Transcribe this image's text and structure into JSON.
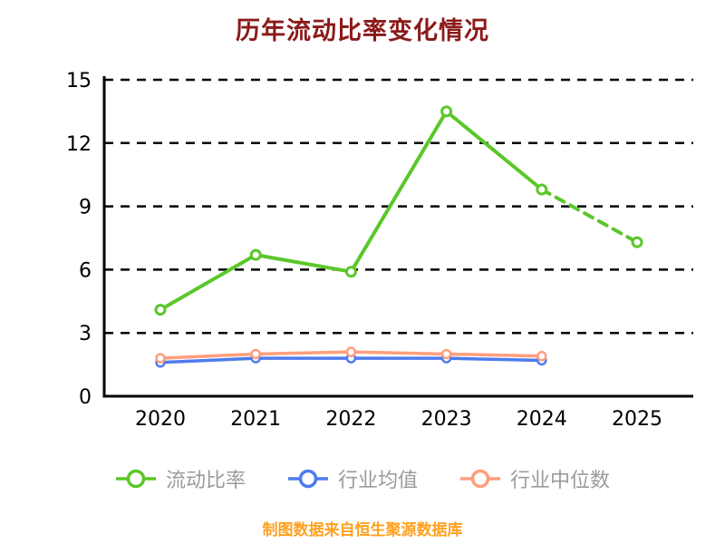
{
  "chart_data": {
    "type": "line",
    "title": "历年流动比率变化情况",
    "x": [
      "2020",
      "2021",
      "2022",
      "2023",
      "2024",
      "2025"
    ],
    "xlabel": "",
    "ylabel": "",
    "ylim": [
      0,
      15
    ],
    "yticks": [
      0,
      3,
      6,
      9,
      12,
      15
    ],
    "grid": "horizontal-dashed",
    "legend_position": "bottom",
    "series": [
      {
        "key": "current-ratio",
        "name": "流动比率",
        "color": "#5BC72A",
        "values": [
          4.1,
          6.7,
          5.9,
          13.5,
          9.8,
          7.3
        ],
        "dash_from_index": 4
      },
      {
        "key": "industry-average",
        "name": "行业均值",
        "color": "#4E7BEE",
        "values": [
          1.6,
          1.8,
          1.8,
          1.8,
          1.7,
          null
        ]
      },
      {
        "key": "industry-median",
        "name": "行业中位数",
        "color": "#FF9E7D",
        "values": [
          1.8,
          2.0,
          2.1,
          2.0,
          1.9,
          null
        ]
      }
    ]
  },
  "footer": {
    "text": "制图数据来自恒生聚源数据库"
  },
  "colors": {
    "background": "#FFFFFF",
    "title": "#8B1A1A",
    "footer": "#FFA01E",
    "axis": "#000000",
    "grid": "#000000",
    "tick_label": "#000000",
    "legend_text": "#9B9B9B"
  }
}
